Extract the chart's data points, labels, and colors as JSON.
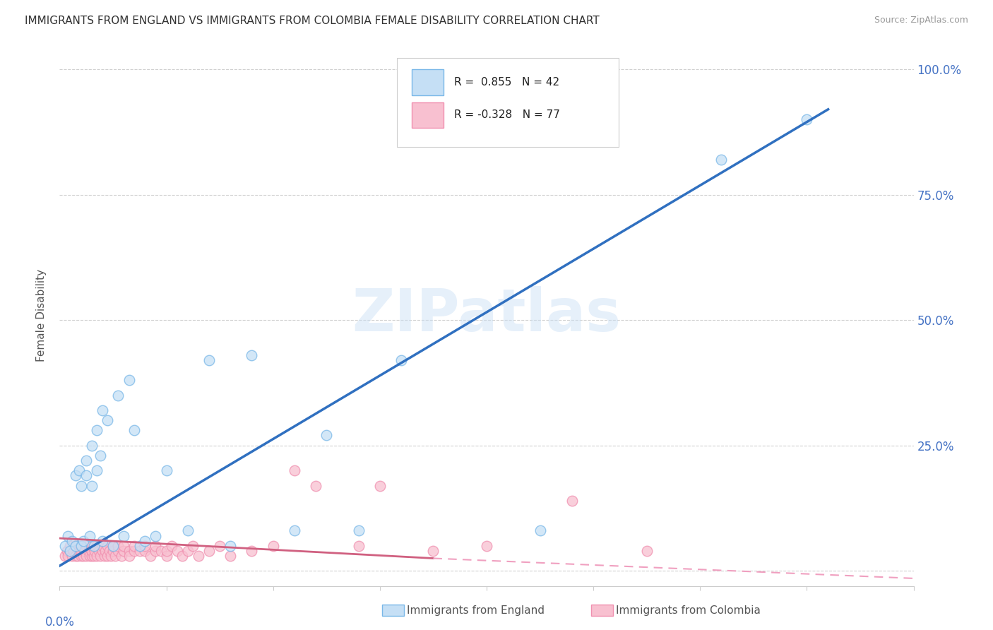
{
  "title": "IMMIGRANTS FROM ENGLAND VS IMMIGRANTS FROM COLOMBIA FEMALE DISABILITY CORRELATION CHART",
  "source": "Source: ZipAtlas.com",
  "ylabel": "Female Disability",
  "england_R": 0.855,
  "england_N": 42,
  "colombia_R": -0.328,
  "colombia_N": 77,
  "england_color": "#7ab8e8",
  "england_fill": "#c5dff5",
  "colombia_color": "#f090b0",
  "colombia_fill": "#f8c0d0",
  "trendline_england_color": "#3070c0",
  "trendline_colombia_solid_color": "#d06080",
  "trendline_colombia_dashed_color": "#f0a0c0",
  "watermark": "ZIPatlas",
  "xlim": [
    0.0,
    0.8
  ],
  "ylim": [
    -0.03,
    1.05
  ],
  "ytick_values": [
    0.0,
    0.25,
    0.5,
    0.75,
    1.0
  ],
  "ytick_labels": [
    "",
    "25.0%",
    "50.0%",
    "75.0%",
    "100.0%"
  ],
  "england_x": [
    0.005,
    0.008,
    0.01,
    0.012,
    0.015,
    0.015,
    0.018,
    0.02,
    0.02,
    0.022,
    0.025,
    0.025,
    0.028,
    0.03,
    0.03,
    0.032,
    0.035,
    0.035,
    0.038,
    0.04,
    0.04,
    0.045,
    0.05,
    0.055,
    0.06,
    0.065,
    0.07,
    0.075,
    0.08,
    0.09,
    0.1,
    0.12,
    0.14,
    0.16,
    0.18,
    0.22,
    0.25,
    0.28,
    0.32,
    0.45,
    0.62,
    0.7
  ],
  "england_y": [
    0.05,
    0.07,
    0.04,
    0.06,
    0.05,
    0.19,
    0.2,
    0.05,
    0.17,
    0.06,
    0.19,
    0.22,
    0.07,
    0.17,
    0.25,
    0.05,
    0.2,
    0.28,
    0.23,
    0.06,
    0.32,
    0.3,
    0.05,
    0.35,
    0.07,
    0.38,
    0.28,
    0.05,
    0.06,
    0.07,
    0.2,
    0.08,
    0.42,
    0.05,
    0.43,
    0.08,
    0.27,
    0.08,
    0.42,
    0.08,
    0.82,
    0.9
  ],
  "colombia_x": [
    0.005,
    0.007,
    0.008,
    0.01,
    0.01,
    0.012,
    0.013,
    0.015,
    0.015,
    0.017,
    0.018,
    0.02,
    0.02,
    0.02,
    0.022,
    0.023,
    0.025,
    0.025,
    0.027,
    0.028,
    0.03,
    0.03,
    0.03,
    0.032,
    0.033,
    0.035,
    0.035,
    0.037,
    0.038,
    0.04,
    0.04,
    0.042,
    0.043,
    0.045,
    0.045,
    0.047,
    0.048,
    0.05,
    0.05,
    0.052,
    0.055,
    0.055,
    0.058,
    0.06,
    0.06,
    0.065,
    0.065,
    0.07,
    0.07,
    0.075,
    0.08,
    0.08,
    0.085,
    0.09,
    0.09,
    0.095,
    0.1,
    0.1,
    0.105,
    0.11,
    0.115,
    0.12,
    0.125,
    0.13,
    0.14,
    0.15,
    0.16,
    0.18,
    0.2,
    0.22,
    0.24,
    0.28,
    0.3,
    0.35,
    0.4,
    0.48,
    0.55
  ],
  "colombia_y": [
    0.03,
    0.04,
    0.03,
    0.04,
    0.05,
    0.03,
    0.04,
    0.03,
    0.05,
    0.03,
    0.04,
    0.03,
    0.04,
    0.05,
    0.03,
    0.04,
    0.03,
    0.05,
    0.04,
    0.03,
    0.03,
    0.04,
    0.05,
    0.03,
    0.04,
    0.03,
    0.05,
    0.04,
    0.03,
    0.04,
    0.05,
    0.03,
    0.04,
    0.03,
    0.05,
    0.04,
    0.03,
    0.04,
    0.05,
    0.03,
    0.04,
    0.05,
    0.03,
    0.04,
    0.05,
    0.04,
    0.03,
    0.04,
    0.05,
    0.04,
    0.04,
    0.05,
    0.03,
    0.04,
    0.05,
    0.04,
    0.03,
    0.04,
    0.05,
    0.04,
    0.03,
    0.04,
    0.05,
    0.03,
    0.04,
    0.05,
    0.03,
    0.04,
    0.05,
    0.2,
    0.17,
    0.05,
    0.17,
    0.04,
    0.05,
    0.14,
    0.04
  ]
}
